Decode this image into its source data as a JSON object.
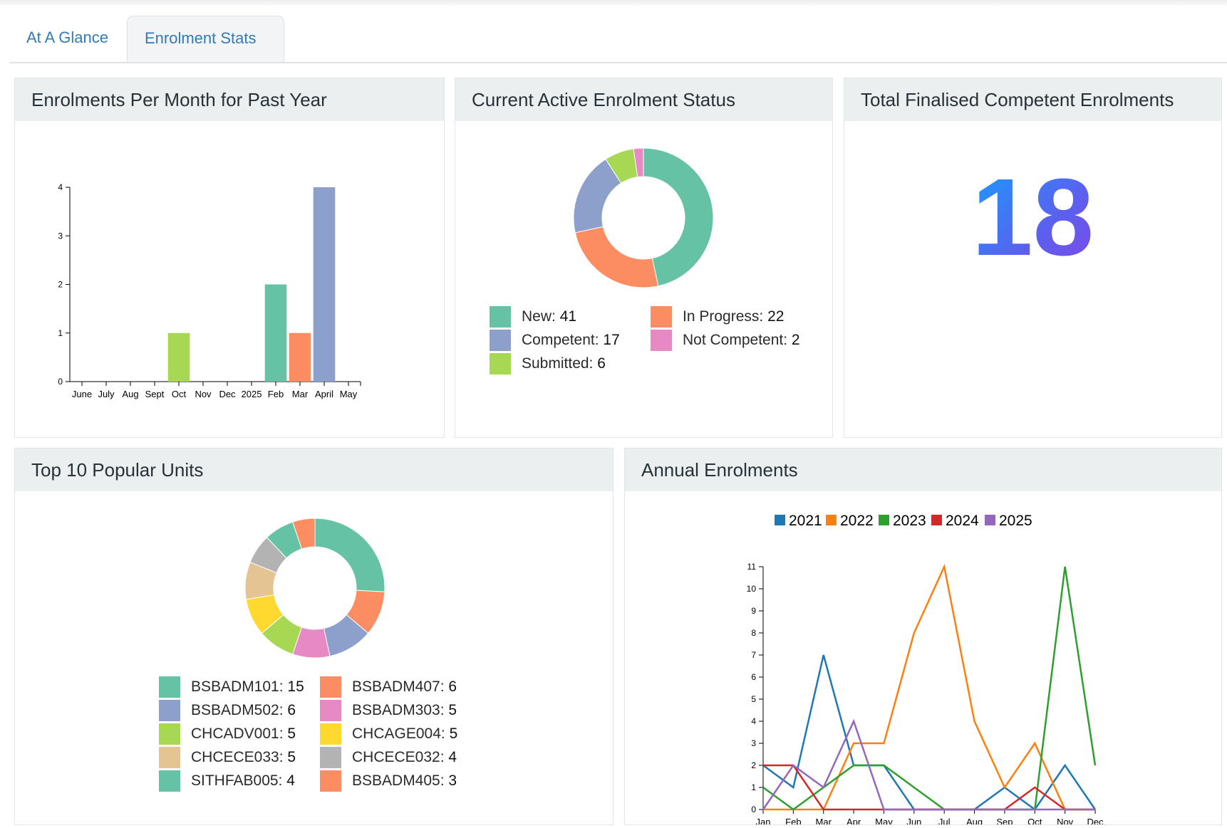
{
  "tabs": [
    {
      "label": "At A Glance"
    },
    {
      "label": "Enrolment Stats"
    }
  ],
  "cards": {
    "monthly": {
      "title": "Enrolments Per Month for Past Year"
    },
    "status": {
      "title": "Current Active Enrolment Status"
    },
    "finalised": {
      "title": "Total Finalised Competent Enrolments",
      "value": "18"
    },
    "units": {
      "title": "Top 10 Popular Units"
    },
    "annual": {
      "title": "Annual Enrolments"
    }
  },
  "status_legend": [
    {
      "label": "New: ",
      "value": "41",
      "color": "#66c2a5"
    },
    {
      "label": "Competent: ",
      "value": "17",
      "color": "#8da0cb"
    },
    {
      "label": "Submitted: ",
      "value": "6",
      "color": "#a6d854"
    },
    {
      "label": "In Progress: ",
      "value": "22",
      "color": "#fc8d62"
    },
    {
      "label": "Not Competent: ",
      "value": "2",
      "color": "#e78ac3"
    }
  ],
  "units_legend": [
    {
      "label": "BSBADM101: ",
      "value": "15",
      "color": "#66c2a5"
    },
    {
      "label": "BSBADM502: ",
      "value": "6",
      "color": "#8da0cb"
    },
    {
      "label": "CHCADV001: ",
      "value": "5",
      "color": "#a6d854"
    },
    {
      "label": "CHCECE033: ",
      "value": "5",
      "color": "#e5c494"
    },
    {
      "label": "SITHFAB005: ",
      "value": "4",
      "color": "#66c2a5"
    },
    {
      "label": "BSBADM407: ",
      "value": "6",
      "color": "#fc8d62"
    },
    {
      "label": "BSBADM303: ",
      "value": "5",
      "color": "#e78ac3"
    },
    {
      "label": "CHCAGE004: ",
      "value": "5",
      "color": "#ffd92f"
    },
    {
      "label": "CHCECE032: ",
      "value": "4",
      "color": "#b3b3b3"
    },
    {
      "label": "BSBADM405: ",
      "value": "3",
      "color": "#fc8d62"
    }
  ],
  "chart_data": [
    {
      "type": "bar",
      "title": "Enrolments Per Month for Past Year",
      "categories": [
        "June",
        "July",
        "Aug",
        "Sept",
        "Oct",
        "Nov",
        "Dec",
        "2025",
        "Feb",
        "Mar",
        "April",
        "May"
      ],
      "values": [
        0,
        0,
        0,
        0,
        1,
        0,
        0,
        0,
        2,
        1,
        4,
        0
      ],
      "colors": [
        "#66c2a5",
        "#fc8d62",
        "#8da0cb",
        "#e78ac3",
        "#a6d854",
        "#ffd92f",
        "#e5c494",
        "#b3b3b3",
        "#66c2a5",
        "#fc8d62",
        "#8da0cb",
        "#e78ac3"
      ],
      "ylim": [
        0,
        4
      ],
      "yticks": [
        0,
        1,
        2,
        3,
        4
      ],
      "grid": false
    },
    {
      "type": "pie",
      "title": "Current Active Enrolment Status",
      "donut": true,
      "labels": [
        "New",
        "In Progress",
        "Competent",
        "Submitted",
        "Not Competent"
      ],
      "values": [
        41,
        22,
        17,
        6,
        2
      ],
      "colors": [
        "#66c2a5",
        "#fc8d62",
        "#8da0cb",
        "#a6d854",
        "#e78ac3"
      ]
    },
    {
      "type": "pie",
      "title": "Top 10 Popular Units",
      "donut": true,
      "labels": [
        "BSBADM101",
        "BSBADM407",
        "BSBADM502",
        "BSBADM303",
        "CHCADV001",
        "CHCAGE004",
        "CHCECE033",
        "CHCECE032",
        "SITHFAB005",
        "BSBADM405"
      ],
      "values": [
        15,
        6,
        6,
        5,
        5,
        5,
        5,
        4,
        4,
        3
      ],
      "colors": [
        "#66c2a5",
        "#fc8d62",
        "#8da0cb",
        "#e78ac3",
        "#a6d854",
        "#ffd92f",
        "#e5c494",
        "#b3b3b3",
        "#66c2a5",
        "#fc8d62"
      ]
    },
    {
      "type": "line",
      "title": "Annual Enrolments",
      "x": [
        "Jan",
        "Feb",
        "Mar",
        "Apr",
        "May",
        "Jun",
        "Jul",
        "Aug",
        "Sep",
        "Oct",
        "Nov",
        "Dec"
      ],
      "ylim": [
        0,
        11
      ],
      "yticks": [
        0,
        1,
        2,
        3,
        4,
        5,
        6,
        7,
        8,
        9,
        10,
        11
      ],
      "legend": "top",
      "grid": false,
      "series": [
        {
          "name": "2021",
          "color": "#1f77b4",
          "values": [
            2,
            1,
            7,
            2,
            2,
            0,
            0,
            0,
            1,
            0,
            2,
            0
          ]
        },
        {
          "name": "2022",
          "color": "#ff7f0e",
          "values": [
            0,
            0,
            0,
            3,
            3,
            8,
            11,
            4,
            1,
            3,
            0,
            0
          ]
        },
        {
          "name": "2023",
          "color": "#2ca02c",
          "values": [
            1,
            0,
            1,
            2,
            2,
            1,
            0,
            0,
            0,
            0,
            11,
            2
          ]
        },
        {
          "name": "2024",
          "color": "#d62728",
          "values": [
            2,
            2,
            0,
            0,
            0,
            0,
            0,
            0,
            0,
            1,
            0,
            0
          ]
        },
        {
          "name": "2025",
          "color": "#9467bd",
          "values": [
            0,
            2,
            1,
            4,
            0,
            0,
            0,
            0,
            0,
            0,
            0,
            0
          ]
        }
      ]
    }
  ]
}
